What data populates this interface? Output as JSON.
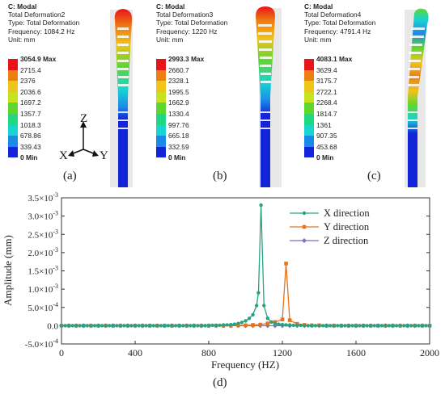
{
  "panels": [
    {
      "title": "C: Modal",
      "result": "Total Deformation2",
      "type": "Type: Total Deformation",
      "frequency": "Frequency: 1084.2 Hz",
      "unit": "Unit: mm",
      "scale": [
        "3054.9 Max",
        "2715.4",
        "2376",
        "2036.6",
        "1697.2",
        "1357.7",
        "1018.3",
        "678.86",
        "339.43",
        "0 Min"
      ],
      "label": "(a)"
    },
    {
      "title": "C: Modal",
      "result": "Total Deformation3",
      "type": "Type: Total Deformation",
      "frequency": "Frequency: 1220 Hz",
      "unit": "Unit: mm",
      "scale": [
        "2993.3 Max",
        "2660.7",
        "2328.1",
        "1995.5",
        "1662.9",
        "1330.4",
        "997.76",
        "665.18",
        "332.59",
        "0 Min"
      ],
      "label": "(b)"
    },
    {
      "title": "C: Modal",
      "result": "Total Deformation4",
      "type": "Type: Total Deformation",
      "frequency": "Frequency: 4791.4 Hz",
      "unit": "Unit: mm",
      "scale": [
        "4083.1 Max",
        "3629.4",
        "3175.7",
        "2722.1",
        "2268.4",
        "1814.7",
        "1361",
        "907.35",
        "453.68",
        "0 Min"
      ],
      "label": "(c)"
    }
  ],
  "scale_colors": [
    "#e8141a",
    "#ee7d12",
    "#f0c419",
    "#c6e31d",
    "#5fd62e",
    "#1fd887",
    "#17d5d1",
    "#1a8ae8",
    "#1424d8"
  ],
  "coord_axes": {
    "z": "Z",
    "x": "X",
    "y": "Y"
  },
  "chart_caption": "(d)",
  "chart_data": {
    "type": "line",
    "xlabel": "Frequency (HZ)",
    "ylabel": "Amplitude (mm)",
    "xlim": [
      0,
      2000
    ],
    "ylim": [
      -0.0005,
      0.0035
    ],
    "xticks": [
      "0",
      "400",
      "800",
      "1200",
      "1600",
      "2000"
    ],
    "yticks": [
      {
        "value": -0.0005,
        "mant": "-5.0",
        "exp": "-4"
      },
      {
        "value": 0.0,
        "mant": "0.0",
        "exp": ""
      },
      {
        "value": 0.0005,
        "mant": "5.0",
        "exp": "-4"
      },
      {
        "value": 0.001,
        "mant": "1.0",
        "exp": "-3"
      },
      {
        "value": 0.0015,
        "mant": "1.5",
        "exp": "-3"
      },
      {
        "value": 0.002,
        "mant": "2.0",
        "exp": "-3"
      },
      {
        "value": 0.0025,
        "mant": "2.5",
        "exp": "-3"
      },
      {
        "value": 0.003,
        "mant": "3.0",
        "exp": "-3"
      },
      {
        "value": 0.0035,
        "mant": "3.5",
        "exp": "-3"
      }
    ],
    "legend_position": "top-right",
    "series": [
      {
        "name": "X direction",
        "color": "#27a383",
        "marker": "circle",
        "x": [
          0,
          20,
          40,
          60,
          80,
          100,
          120,
          140,
          160,
          180,
          200,
          220,
          240,
          260,
          280,
          300,
          320,
          340,
          360,
          380,
          400,
          420,
          440,
          460,
          480,
          500,
          520,
          540,
          560,
          580,
          600,
          620,
          640,
          660,
          680,
          700,
          720,
          740,
          760,
          780,
          800,
          820,
          840,
          860,
          880,
          900,
          920,
          940,
          960,
          980,
          1000,
          1020,
          1040,
          1060,
          1070,
          1084,
          1100,
          1120,
          1140,
          1160,
          1180,
          1200,
          1220,
          1240,
          1260,
          1280,
          1300,
          1320,
          1340,
          1360,
          1380,
          1400,
          1420,
          1440,
          1460,
          1480,
          1500,
          1520,
          1540,
          1560,
          1580,
          1600,
          1620,
          1640,
          1660,
          1680,
          1700,
          1720,
          1740,
          1760,
          1780,
          1800,
          1820,
          1840,
          1860,
          1880,
          1900,
          1920,
          1940,
          1960,
          1980,
          2000
        ],
        "y": [
          0,
          0,
          0,
          0,
          0,
          0,
          0,
          0,
          0,
          0,
          0,
          0,
          0,
          0,
          0,
          0,
          0,
          0,
          0,
          0,
          0,
          0,
          0,
          0,
          0,
          0,
          0,
          0,
          0,
          0,
          0,
          0,
          0,
          0,
          0,
          0,
          0,
          0,
          0,
          0,
          0,
          1e-05,
          1e-05,
          1e-05,
          2e-05,
          2e-05,
          3e-05,
          4e-05,
          6e-05,
          9e-05,
          0.00013,
          0.0002,
          0.0003,
          0.00055,
          0.0009,
          0.0033,
          0.00055,
          0.0002,
          0.0001,
          6e-05,
          4e-05,
          3e-05,
          2e-05,
          2e-05,
          1e-05,
          1e-05,
          1e-05,
          0,
          0,
          0,
          0,
          0,
          0,
          0,
          0,
          0,
          0,
          0,
          0,
          0,
          0,
          0,
          0,
          0,
          0,
          0,
          0,
          0,
          0,
          0,
          0,
          0,
          0,
          0,
          0,
          0,
          0,
          0,
          0,
          0,
          0,
          0
        ]
      },
      {
        "name": "Y direction",
        "color": "#e8731f",
        "marker": "square",
        "x": [
          0,
          40,
          80,
          120,
          160,
          200,
          240,
          280,
          320,
          360,
          400,
          440,
          480,
          520,
          560,
          600,
          640,
          680,
          720,
          760,
          800,
          840,
          880,
          920,
          960,
          1000,
          1040,
          1080,
          1120,
          1160,
          1200,
          1220,
          1240,
          1280,
          1320,
          1360,
          1400,
          1440,
          1480,
          1520,
          1560,
          1600,
          1640,
          1680,
          1720,
          1760,
          1800,
          1840,
          1880,
          1920,
          1960,
          2000
        ],
        "y": [
          0,
          0,
          0,
          0,
          0,
          0,
          0,
          0,
          0,
          0,
          0,
          0,
          0,
          0,
          0,
          0,
          0,
          0,
          0,
          0,
          0,
          0,
          0,
          0,
          1e-05,
          1e-05,
          2e-05,
          3e-05,
          6e-05,
          0.0001,
          0.00017,
          0.0017,
          0.00015,
          5e-05,
          2e-05,
          1e-05,
          1e-05,
          0,
          0,
          0,
          0,
          0,
          0,
          0,
          0,
          0,
          0,
          0,
          0,
          0,
          0,
          0
        ]
      },
      {
        "name": "Z direction",
        "color": "#7b6fc6",
        "marker": "diamond",
        "x": [
          0,
          40,
          80,
          120,
          160,
          200,
          240,
          280,
          320,
          360,
          400,
          440,
          480,
          520,
          560,
          600,
          640,
          680,
          720,
          760,
          800,
          840,
          880,
          920,
          960,
          1000,
          1040,
          1080,
          1120,
          1160,
          1200,
          1240,
          1280,
          1320,
          1360,
          1400,
          1440,
          1480,
          1520,
          1560,
          1600,
          1640,
          1680,
          1720,
          1760,
          1800,
          1840,
          1880,
          1920,
          1960,
          2000
        ],
        "y": [
          0,
          0,
          0,
          0,
          0,
          0,
          0,
          0,
          0,
          0,
          0,
          0,
          0,
          0,
          0,
          0,
          0,
          0,
          0,
          0,
          0,
          0,
          0,
          0,
          0,
          0,
          0,
          0,
          0,
          0,
          0,
          0,
          0,
          0,
          0,
          0,
          0,
          0,
          0,
          0,
          0,
          0,
          0,
          0,
          0,
          0,
          0,
          0,
          0,
          0,
          0
        ]
      }
    ]
  }
}
